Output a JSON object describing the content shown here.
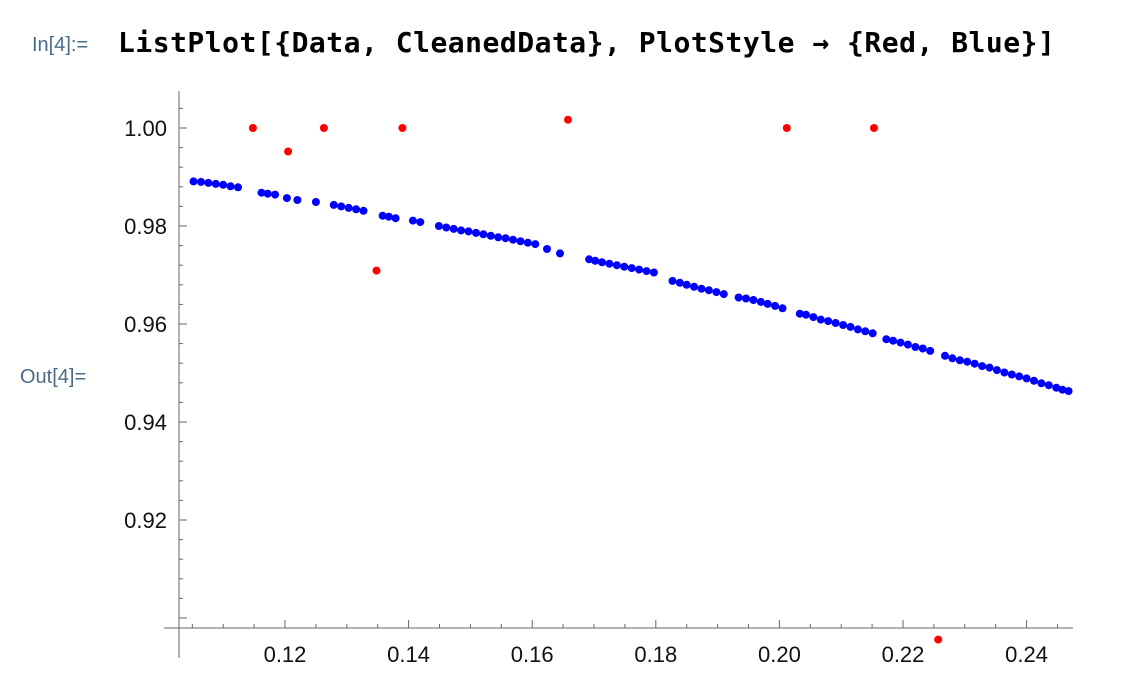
{
  "cell": {
    "in_label": "In[4]:=",
    "out_label": "Out[4]=",
    "input": {
      "fn": "ListPlot",
      "open": "[{",
      "arg1": "Data",
      "sep1": ", ",
      "arg2": "CleanedData",
      "close1": "}",
      "sep2": ", ",
      "opt": "PlotStyle",
      "arrow": " → ",
      "val_open": "{",
      "c1": "Red",
      "sep3": ", ",
      "c2": "Blue",
      "close2": "}]"
    }
  },
  "chart_data": {
    "type": "scatter",
    "title": "",
    "xlabel": "",
    "ylabel": "",
    "xlim": [
      0.104,
      0.2475
    ],
    "ylim": [
      0.9,
      1.0075
    ],
    "x_ticks": [
      "0.12",
      "0.14",
      "0.16",
      "0.18",
      "0.20",
      "0.22",
      "0.24"
    ],
    "y_ticks": [
      "0.92",
      "0.94",
      "0.96",
      "0.98",
      "1.00"
    ],
    "grid": false,
    "colors": {
      "Data": "#ff0000",
      "CleanedData": "#0000ff"
    },
    "series": [
      {
        "key": "Data",
        "points": [
          [
            0.1148,
            1.0
          ],
          [
            0.1205,
            0.9952
          ],
          [
            0.1263,
            1.0
          ],
          [
            0.1348,
            0.9709
          ],
          [
            0.139,
            1.0
          ],
          [
            0.1658,
            1.0017
          ],
          [
            0.2012,
            1.0
          ],
          [
            0.2153,
            1.0
          ],
          [
            0.2257,
            0.8956
          ]
        ]
      },
      {
        "key": "CleanedData",
        "points": [
          [
            0.1052,
            0.9891
          ],
          [
            0.1064,
            0.989
          ],
          [
            0.1076,
            0.9888
          ],
          [
            0.1088,
            0.9886
          ],
          [
            0.11,
            0.9884
          ],
          [
            0.1112,
            0.9881
          ],
          [
            0.1124,
            0.9879
          ],
          [
            0.1162,
            0.9868
          ],
          [
            0.1172,
            0.9866
          ],
          [
            0.1184,
            0.9864
          ],
          [
            0.1203,
            0.9857
          ],
          [
            0.122,
            0.9853
          ],
          [
            0.125,
            0.9849
          ],
          [
            0.1279,
            0.9843
          ],
          [
            0.1291,
            0.984
          ],
          [
            0.1303,
            0.9837
          ],
          [
            0.1315,
            0.9834
          ],
          [
            0.1327,
            0.9831
          ],
          [
            0.1358,
            0.9821
          ],
          [
            0.1368,
            0.9819
          ],
          [
            0.1379,
            0.9816
          ],
          [
            0.1407,
            0.9811
          ],
          [
            0.1419,
            0.9808
          ],
          [
            0.1449,
            0.98
          ],
          [
            0.1461,
            0.9797
          ],
          [
            0.1473,
            0.9794
          ],
          [
            0.1485,
            0.9791
          ],
          [
            0.1497,
            0.9789
          ],
          [
            0.1509,
            0.9786
          ],
          [
            0.1521,
            0.9783
          ],
          [
            0.1533,
            0.978
          ],
          [
            0.1545,
            0.9777
          ],
          [
            0.1557,
            0.9775
          ],
          [
            0.1569,
            0.9772
          ],
          [
            0.1581,
            0.9769
          ],
          [
            0.1593,
            0.9766
          ],
          [
            0.1605,
            0.9763
          ],
          [
            0.1624,
            0.9753
          ],
          [
            0.1645,
            0.9744
          ],
          [
            0.1692,
            0.9732
          ],
          [
            0.1702,
            0.9729
          ],
          [
            0.1713,
            0.9726
          ],
          [
            0.1725,
            0.9723
          ],
          [
            0.1737,
            0.972
          ],
          [
            0.1749,
            0.9717
          ],
          [
            0.1761,
            0.9714
          ],
          [
            0.1773,
            0.9711
          ],
          [
            0.1785,
            0.9708
          ],
          [
            0.1797,
            0.9705
          ],
          [
            0.1827,
            0.9688
          ],
          [
            0.1839,
            0.9684
          ],
          [
            0.185,
            0.968
          ],
          [
            0.1862,
            0.9676
          ],
          [
            0.1874,
            0.9672
          ],
          [
            0.1886,
            0.9669
          ],
          [
            0.1898,
            0.9665
          ],
          [
            0.191,
            0.9661
          ],
          [
            0.1934,
            0.9654
          ],
          [
            0.1946,
            0.9652
          ],
          [
            0.1958,
            0.9649
          ],
          [
            0.197,
            0.9645
          ],
          [
            0.1981,
            0.9641
          ],
          [
            0.1993,
            0.9637
          ],
          [
            0.2005,
            0.9632
          ],
          [
            0.2033,
            0.9621
          ],
          [
            0.2043,
            0.9619
          ],
          [
            0.2055,
            0.9614
          ],
          [
            0.2067,
            0.9609
          ],
          [
            0.2079,
            0.9606
          ],
          [
            0.2091,
            0.9602
          ],
          [
            0.2103,
            0.9598
          ],
          [
            0.2115,
            0.9594
          ],
          [
            0.2127,
            0.9589
          ],
          [
            0.2139,
            0.9585
          ],
          [
            0.2151,
            0.9581
          ],
          [
            0.2173,
            0.9569
          ],
          [
            0.2184,
            0.9566
          ],
          [
            0.2196,
            0.9562
          ],
          [
            0.2208,
            0.9558
          ],
          [
            0.222,
            0.9553
          ],
          [
            0.2232,
            0.955
          ],
          [
            0.2244,
            0.9545
          ],
          [
            0.2268,
            0.9535
          ],
          [
            0.228,
            0.953
          ],
          [
            0.2292,
            0.9526
          ],
          [
            0.2304,
            0.9523
          ],
          [
            0.2316,
            0.9519
          ],
          [
            0.2328,
            0.9514
          ],
          [
            0.234,
            0.9511
          ],
          [
            0.2352,
            0.9506
          ],
          [
            0.2364,
            0.9501
          ],
          [
            0.2376,
            0.9497
          ],
          [
            0.2388,
            0.9493
          ],
          [
            0.24,
            0.9489
          ],
          [
            0.2412,
            0.9484
          ],
          [
            0.2424,
            0.9479
          ],
          [
            0.2436,
            0.9475
          ],
          [
            0.2448,
            0.947
          ],
          [
            0.2458,
            0.9466
          ],
          [
            0.2468,
            0.9463
          ]
        ]
      }
    ]
  }
}
